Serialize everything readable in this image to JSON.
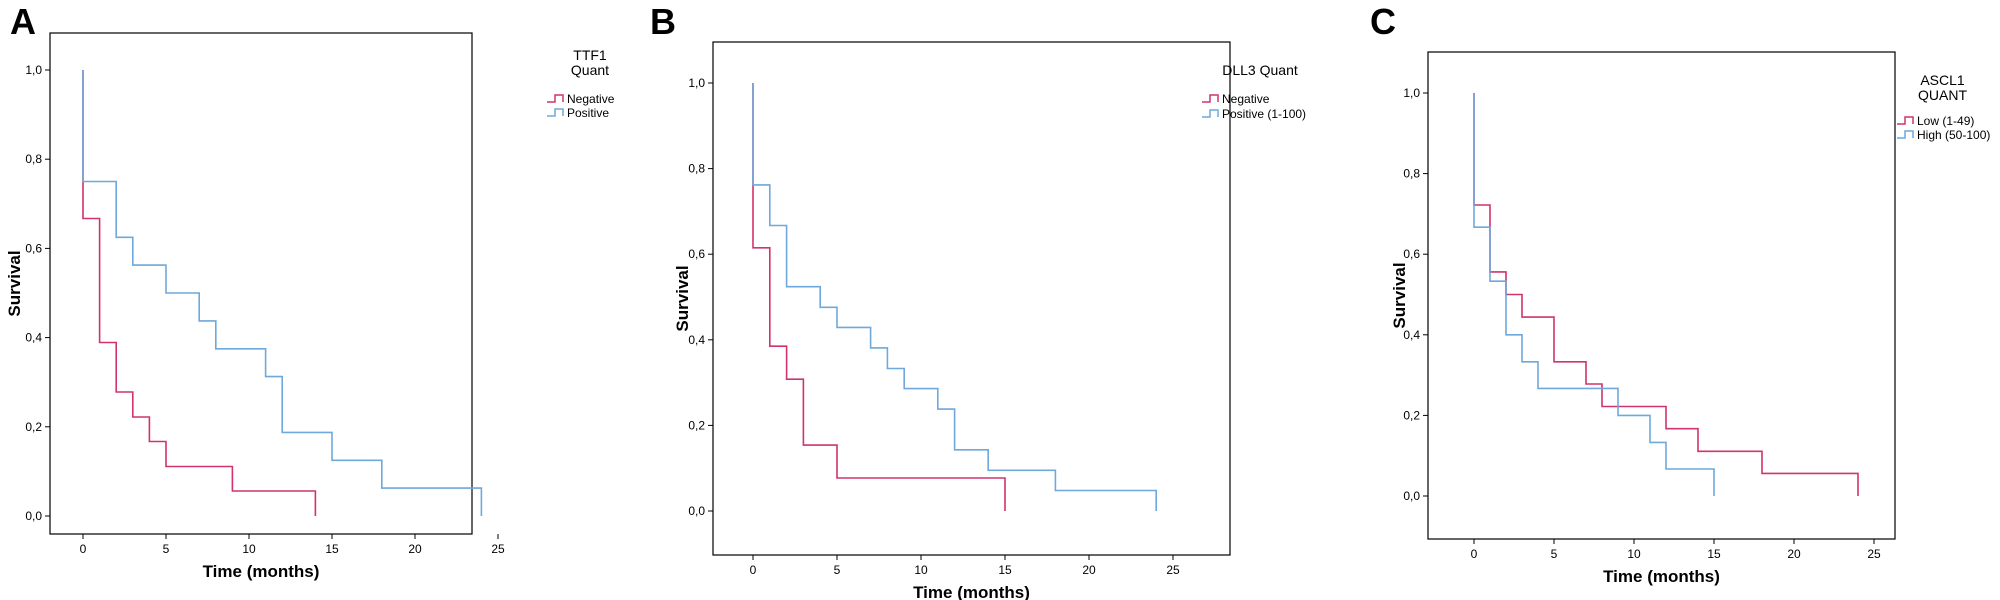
{
  "colors": {
    "series_a": "#d1336e",
    "series_b": "#6fa8dc",
    "axis": "#000000"
  },
  "chart_data": [
    {
      "type": "line",
      "panel": "A",
      "xlabel": "Time (months)",
      "ylabel": "Survival",
      "xlim": [
        0,
        25
      ],
      "ylim": [
        0,
        1
      ],
      "x_ticks": [
        "0",
        "5",
        "10",
        "15",
        "20",
        "25"
      ],
      "y_ticks": [
        "0,0",
        "0,2",
        "0,4",
        "0,6",
        "0,8",
        "1,0"
      ],
      "grid": false,
      "legend_position": "top-right",
      "legend_title": "TTF1\nQuant",
      "series": [
        {
          "name": "Negative",
          "color": "#d1336e",
          "step": true,
          "x": [
            0,
            0,
            1,
            2,
            3,
            4,
            5,
            9,
            14
          ],
          "y": [
            1.0,
            0.667,
            0.389,
            0.278,
            0.222,
            0.167,
            0.111,
            0.056,
            0.0
          ]
        },
        {
          "name": "Positive",
          "color": "#6fa8dc",
          "step": true,
          "x": [
            0,
            0,
            2,
            3,
            5,
            7,
            8,
            11,
            12,
            15,
            18,
            24
          ],
          "y": [
            1.0,
            0.75,
            0.625,
            0.5625,
            0.5,
            0.4375,
            0.375,
            0.3125,
            0.1875,
            0.125,
            0.0625,
            0.0
          ]
        }
      ]
    },
    {
      "type": "line",
      "panel": "B",
      "xlabel": "Time (months)",
      "ylabel": "Survival",
      "xlim": [
        0,
        25
      ],
      "ylim": [
        0,
        1
      ],
      "x_ticks": [
        "0",
        "5",
        "10",
        "15",
        "20",
        "25"
      ],
      "y_ticks": [
        "0,0",
        "0,2",
        "0,4",
        "0,6",
        "0,8",
        "1,0"
      ],
      "grid": false,
      "legend_position": "top-right",
      "legend_title": "DLL3 Quant",
      "series": [
        {
          "name": "Negative",
          "color": "#d1336e",
          "step": true,
          "x": [
            0,
            0,
            1,
            2,
            3,
            5,
            15
          ],
          "y": [
            1.0,
            0.615,
            0.385,
            0.308,
            0.154,
            0.077,
            0.0
          ]
        },
        {
          "name": "Positive (1-100)",
          "color": "#6fa8dc",
          "step": true,
          "x": [
            0,
            0,
            1,
            2,
            4,
            5,
            7,
            8,
            9,
            11,
            12,
            14,
            18,
            24
          ],
          "y": [
            1.0,
            0.762,
            0.667,
            0.524,
            0.476,
            0.429,
            0.381,
            0.333,
            0.286,
            0.238,
            0.143,
            0.095,
            0.048,
            0.0
          ]
        }
      ]
    },
    {
      "type": "line",
      "panel": "C",
      "xlabel": "Time (months)",
      "ylabel": "Survival",
      "xlim": [
        0,
        25
      ],
      "ylim": [
        0,
        1
      ],
      "x_ticks": [
        "0",
        "5",
        "10",
        "15",
        "20",
        "25"
      ],
      "y_ticks": [
        "0,0",
        "0,2",
        "0,4",
        "0,6",
        "0,8",
        "1,0"
      ],
      "grid": false,
      "legend_position": "top-right",
      "legend_title": "ASCL1\nQUANT",
      "series": [
        {
          "name": "Low  (1-49)",
          "color": "#d1336e",
          "step": true,
          "x": [
            0,
            0,
            1,
            2,
            3,
            5,
            7,
            8,
            12,
            14,
            18,
            24
          ],
          "y": [
            1.0,
            0.722,
            0.556,
            0.5,
            0.444,
            0.333,
            0.278,
            0.222,
            0.167,
            0.111,
            0.056,
            0.0
          ]
        },
        {
          "name": "High (50-100)",
          "color": "#6fa8dc",
          "step": true,
          "x": [
            0,
            0,
            1,
            2,
            3,
            4,
            9,
            11,
            12,
            15
          ],
          "y": [
            1.0,
            0.667,
            0.533,
            0.4,
            0.333,
            0.267,
            0.2,
            0.133,
            0.067,
            0.0
          ]
        }
      ]
    }
  ]
}
